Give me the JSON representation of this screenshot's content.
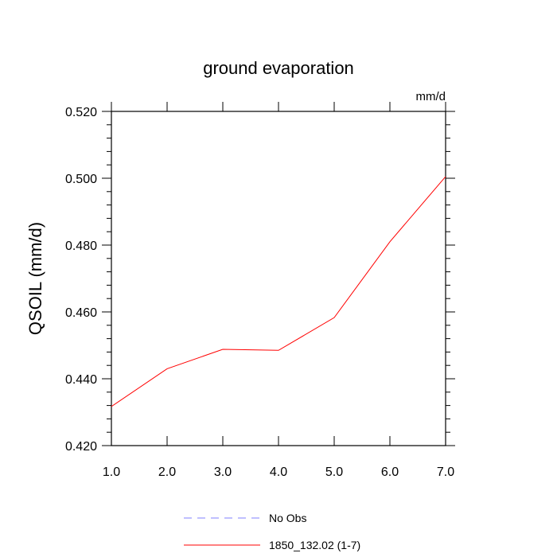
{
  "chart_data": {
    "type": "line",
    "title": "ground evaporation",
    "units_label": "mm/d",
    "ylabel": "QSOIL  (mm/d)",
    "xlabel": "",
    "x": [
      1.0,
      2.0,
      3.0,
      4.0,
      5.0,
      6.0,
      7.0
    ],
    "xlim": [
      1.0,
      7.0
    ],
    "ylim": [
      0.42,
      0.52
    ],
    "x_ticks": [
      "1.0",
      "2.0",
      "3.0",
      "4.0",
      "5.0",
      "6.0",
      "7.0"
    ],
    "y_ticks": [
      "0.420",
      "0.440",
      "0.460",
      "0.480",
      "0.500",
      "0.520"
    ],
    "y_tick_values": [
      0.42,
      0.44,
      0.46,
      0.48,
      0.5,
      0.52
    ],
    "grid": false,
    "legend_placement": "bottom-center",
    "series": [
      {
        "name": "1850_132.02 (1-7)",
        "color": "#ff0000",
        "style": "solid",
        "values": [
          0.4317,
          0.443,
          0.4488,
          0.4485,
          0.4583,
          0.481,
          0.5005
        ]
      }
    ],
    "legend": [
      {
        "label": "No Obs",
        "color": "#8080ff",
        "style": "dashed"
      },
      {
        "label": "1850_132.02 (1-7)",
        "color": "#ff0000",
        "style": "solid"
      }
    ]
  }
}
